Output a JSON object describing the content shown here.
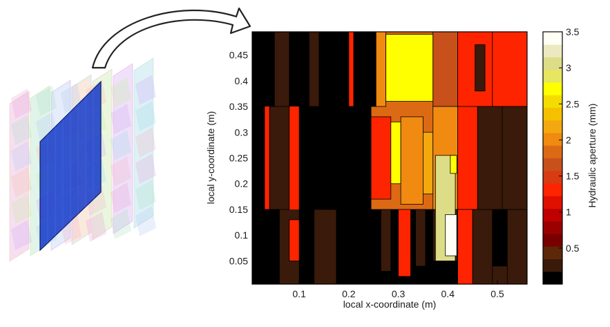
{
  "chart_data": {
    "type": "heatmap",
    "title": "",
    "xlabel": "local x-coordinate (m)",
    "ylabel": "local y-coordinate (m)",
    "xlim": [
      0.005,
      0.56
    ],
    "ylim": [
      0.005,
      0.495
    ],
    "xticks": [
      0.1,
      0.2,
      0.3,
      0.4,
      0.5
    ],
    "yticks": [
      0.05,
      0.1,
      0.15,
      0.2,
      0.25,
      0.3,
      0.35,
      0.4,
      0.45
    ],
    "colorbar": {
      "label": "Hydraulic aperture (mm)",
      "range": [
        0,
        3.5
      ],
      "ticks": [
        0.5,
        1,
        1.5,
        2,
        2.5,
        3,
        3.5
      ],
      "levels": [
        "#000000",
        "#3a1a0a",
        "#5c2808",
        "#7a0000",
        "#9b0000",
        "#c00000",
        "#e01000",
        "#ff2400",
        "#d83a12",
        "#c8501a",
        "#dc6a14",
        "#f08a10",
        "#f3a810",
        "#f5c000",
        "#f5dc00",
        "#ffff00",
        "#e6e660",
        "#dddd88",
        "#ece8c0",
        "#fffff5"
      ]
    },
    "fracture_panels": [
      {
        "x": [
          0.005,
          0.21
        ],
        "y": [
          0.005,
          0.15
        ],
        "level": 1
      },
      {
        "x": [
          0.21,
          0.37
        ],
        "y": [
          0.005,
          0.15
        ],
        "level": 0
      },
      {
        "x": [
          0.37,
          0.56
        ],
        "y": [
          0.005,
          0.15
        ],
        "level": 1
      },
      {
        "x": [
          0.005,
          0.21
        ],
        "y": [
          0.15,
          0.35
        ],
        "level": 7
      },
      {
        "x": [
          0.21,
          0.37
        ],
        "y": [
          0.15,
          0.35
        ],
        "level": 10
      },
      {
        "x": [
          0.37,
          0.56
        ],
        "y": [
          0.15,
          0.35
        ],
        "level": 1
      },
      {
        "x": [
          0.005,
          0.21
        ],
        "y": [
          0.35,
          0.495
        ],
        "level": 0
      },
      {
        "x": [
          0.21,
          0.37
        ],
        "y": [
          0.35,
          0.495
        ],
        "level": 10
      },
      {
        "x": [
          0.37,
          0.56
        ],
        "y": [
          0.35,
          0.495
        ],
        "level": 7
      }
    ],
    "patches": [
      {
        "x": [
          0.005,
          0.03
        ],
        "y": [
          0.005,
          0.495
        ],
        "level": 0
      },
      {
        "x": [
          0.05,
          0.08
        ],
        "y": [
          0.35,
          0.495
        ],
        "level": 1
      },
      {
        "x": [
          0.12,
          0.14
        ],
        "y": [
          0.35,
          0.495
        ],
        "level": 1
      },
      {
        "x": [
          0.2,
          0.21
        ],
        "y": [
          0.35,
          0.495
        ],
        "level": 7
      },
      {
        "x": [
          0.005,
          0.02
        ],
        "y": [
          0.15,
          0.35
        ],
        "level": 0
      },
      {
        "x": [
          0.04,
          0.08
        ],
        "y": [
          0.15,
          0.35
        ],
        "level": 1
      },
      {
        "x": [
          0.1,
          0.21
        ],
        "y": [
          0.15,
          0.35
        ],
        "level": 0
      },
      {
        "x": [
          0.03,
          0.06
        ],
        "y": [
          0.005,
          0.15
        ],
        "level": 0
      },
      {
        "x": [
          0.1,
          0.13
        ],
        "y": [
          0.005,
          0.15
        ],
        "level": 0
      },
      {
        "x": [
          0.08,
          0.1
        ],
        "y": [
          0.05,
          0.13
        ],
        "level": 7
      },
      {
        "x": [
          0.175,
          0.21
        ],
        "y": [
          0.005,
          0.15
        ],
        "level": 0
      },
      {
        "x": [
          0.21,
          0.255
        ],
        "y": [
          0.35,
          0.495
        ],
        "level": 0
      },
      {
        "x": [
          0.255,
          0.275
        ],
        "y": [
          0.35,
          0.495
        ],
        "level": 11
      },
      {
        "x": [
          0.275,
          0.37
        ],
        "y": [
          0.36,
          0.49
        ],
        "level": 15
      },
      {
        "x": [
          0.21,
          0.245
        ],
        "y": [
          0.15,
          0.35
        ],
        "level": 0
      },
      {
        "x": [
          0.245,
          0.285
        ],
        "y": [
          0.17,
          0.33
        ],
        "level": 7
      },
      {
        "x": [
          0.285,
          0.305
        ],
        "y": [
          0.2,
          0.32
        ],
        "level": 15
      },
      {
        "x": [
          0.305,
          0.35
        ],
        "y": [
          0.16,
          0.33
        ],
        "level": 11
      },
      {
        "x": [
          0.35,
          0.37
        ],
        "y": [
          0.18,
          0.3
        ],
        "level": 12
      },
      {
        "x": [
          0.21,
          0.37
        ],
        "y": [
          0.005,
          0.15
        ],
        "level": 0
      },
      {
        "x": [
          0.265,
          0.285
        ],
        "y": [
          0.03,
          0.15
        ],
        "level": 1
      },
      {
        "x": [
          0.3,
          0.325
        ],
        "y": [
          0.02,
          0.15
        ],
        "level": 7
      },
      {
        "x": [
          0.335,
          0.355
        ],
        "y": [
          0.04,
          0.15
        ],
        "level": 1
      },
      {
        "x": [
          0.37,
          0.42
        ],
        "y": [
          0.35,
          0.495
        ],
        "level": 9
      },
      {
        "x": [
          0.42,
          0.49
        ],
        "y": [
          0.35,
          0.495
        ],
        "level": 7
      },
      {
        "x": [
          0.455,
          0.475
        ],
        "y": [
          0.38,
          0.47
        ],
        "level": 1
      },
      {
        "x": [
          0.5,
          0.52
        ],
        "y": [
          0.38,
          0.47
        ],
        "level": 1
      },
      {
        "x": [
          0.49,
          0.56
        ],
        "y": [
          0.35,
          0.495
        ],
        "level": 7
      },
      {
        "x": [
          0.37,
          0.42
        ],
        "y": [
          0.15,
          0.35
        ],
        "level": 11
      },
      {
        "x": [
          0.42,
          0.46
        ],
        "y": [
          0.15,
          0.35
        ],
        "level": 7
      },
      {
        "x": [
          0.46,
          0.51
        ],
        "y": [
          0.15,
          0.35
        ],
        "level": 1
      },
      {
        "x": [
          0.51,
          0.56
        ],
        "y": [
          0.15,
          0.35
        ],
        "level": 1
      },
      {
        "x": [
          0.375,
          0.415
        ],
        "y": [
          0.05,
          0.255
        ],
        "level": 17
      },
      {
        "x": [
          0.395,
          0.418
        ],
        "y": [
          0.06,
          0.14
        ],
        "level": 19
      },
      {
        "x": [
          0.405,
          0.418
        ],
        "y": [
          0.22,
          0.255
        ],
        "level": 15
      },
      {
        "x": [
          0.37,
          0.42
        ],
        "y": [
          0.005,
          0.05
        ],
        "level": 0
      },
      {
        "x": [
          0.42,
          0.45
        ],
        "y": [
          0.005,
          0.15
        ],
        "level": 7
      },
      {
        "x": [
          0.45,
          0.49
        ],
        "y": [
          0.005,
          0.15
        ],
        "level": 1
      },
      {
        "x": [
          0.49,
          0.52
        ],
        "y": [
          0.04,
          0.15
        ],
        "level": 0
      },
      {
        "x": [
          0.52,
          0.56
        ],
        "y": [
          0.005,
          0.15
        ],
        "level": 1
      }
    ]
  },
  "illustration": {
    "panel_colors": [
      "#e8a3d8",
      "#a8e0c4",
      "#b4c8f0",
      "#f0c0a0",
      "#c4e8a0",
      "#d0a8f0",
      "#a0d8e8",
      "#f0b4c8"
    ],
    "highlight_color": "#1a3fc8",
    "arrow_fill": "#ffffff",
    "arrow_stroke": "#222222"
  }
}
